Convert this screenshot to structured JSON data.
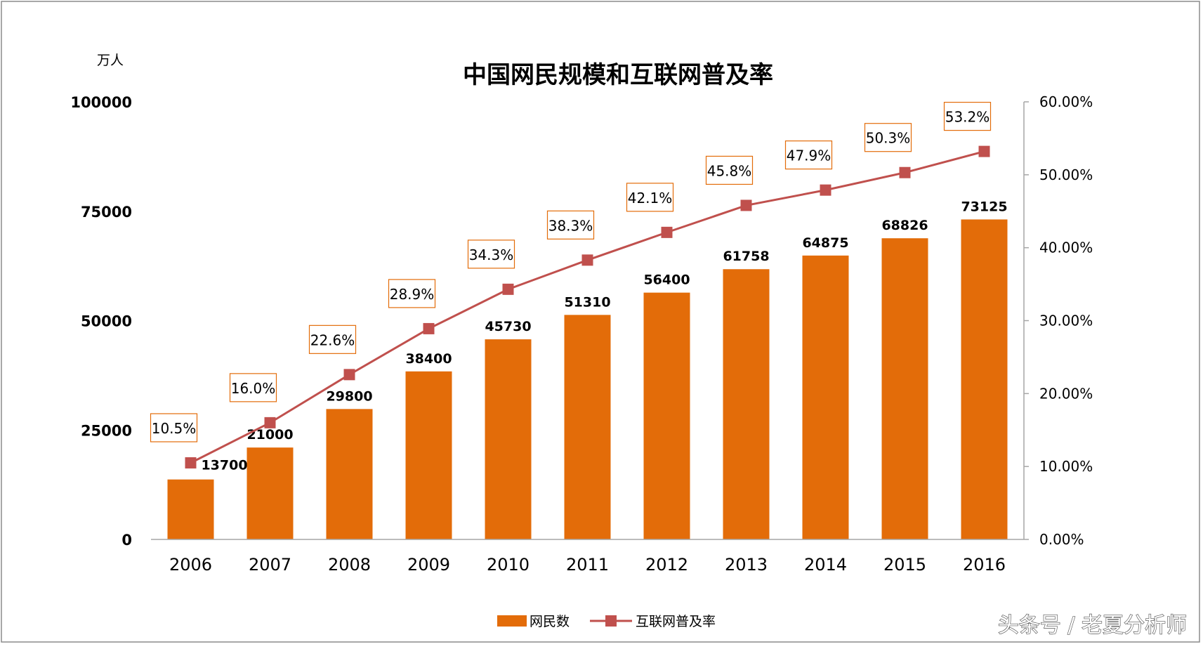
{
  "chart_data": {
    "type": "bar+line",
    "title": "中国网民规模和互联网普及率",
    "unit_label": "万人",
    "categories": [
      "2006",
      "2007",
      "2008",
      "2009",
      "2010",
      "2011",
      "2012",
      "2013",
      "2014",
      "2015",
      "2016"
    ],
    "series": [
      {
        "name": "网民数",
        "kind": "bar",
        "axis": "left",
        "color": "#e36c09",
        "values": [
          13700,
          21000,
          29800,
          38400,
          45730,
          51310,
          56400,
          61758,
          64875,
          68826,
          73125
        ],
        "labels": [
          "13700",
          "21000",
          "29800",
          "38400",
          "45730",
          "51310",
          "56400",
          "61758",
          "64875",
          "68826",
          "73125"
        ]
      },
      {
        "name": "互联网普及率",
        "kind": "line",
        "axis": "right",
        "color": "#c0504d",
        "values": [
          10.5,
          16.0,
          22.6,
          28.9,
          34.3,
          38.3,
          42.1,
          45.8,
          47.9,
          50.3,
          53.2
        ],
        "labels": [
          "10.5%",
          "16.0%",
          "22.6%",
          "28.9%",
          "34.3%",
          "38.3%",
          "42.1%",
          "45.8%",
          "47.9%",
          "50.3%",
          "53.2%"
        ]
      }
    ],
    "y_left": {
      "ylim": [
        0,
        100000
      ],
      "ticks": [
        "0",
        "25000",
        "50000",
        "75000",
        "100000"
      ]
    },
    "y_right": {
      "ylim": [
        0,
        60
      ],
      "ticks": [
        "0.00%",
        "10.00%",
        "20.00%",
        "30.00%",
        "40.00%",
        "50.00%",
        "60.00%"
      ]
    },
    "legend": {
      "position": "bottom"
    },
    "grid": false
  },
  "watermark": "头条号 / 老夏分析师"
}
